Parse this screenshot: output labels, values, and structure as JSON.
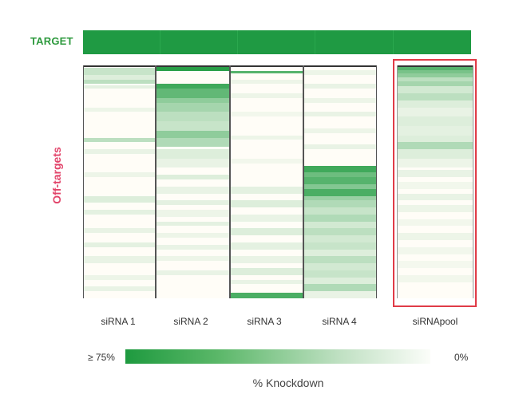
{
  "target_label": "TARGET",
  "offtargets_label": "Off-targets",
  "columns": [
    {
      "label": "siRNA 1",
      "bands": [
        [
          0.0,
          0.005,
          0.9
        ],
        [
          0.01,
          0.04,
          0.25
        ],
        [
          0.04,
          0.06,
          0.15
        ],
        [
          0.06,
          0.08,
          0.3
        ],
        [
          0.085,
          0.1,
          0.12
        ],
        [
          0.18,
          0.2,
          0.08
        ],
        [
          0.31,
          0.33,
          0.3
        ],
        [
          0.36,
          0.38,
          0.1
        ],
        [
          0.46,
          0.48,
          0.08
        ],
        [
          0.56,
          0.59,
          0.15
        ],
        [
          0.62,
          0.64,
          0.12
        ],
        [
          0.7,
          0.72,
          0.1
        ],
        [
          0.76,
          0.78,
          0.12
        ],
        [
          0.82,
          0.85,
          0.1
        ],
        [
          0.9,
          0.92,
          0.08
        ],
        [
          0.95,
          0.97,
          0.1
        ]
      ]
    },
    {
      "label": "siRNA 2",
      "bands": [
        [
          0.0,
          0.025,
          0.95
        ],
        [
          0.08,
          0.1,
          0.85
        ],
        [
          0.1,
          0.14,
          0.7
        ],
        [
          0.14,
          0.16,
          0.5
        ],
        [
          0.16,
          0.2,
          0.4
        ],
        [
          0.2,
          0.24,
          0.3
        ],
        [
          0.24,
          0.28,
          0.25
        ],
        [
          0.28,
          0.31,
          0.5
        ],
        [
          0.31,
          0.35,
          0.35
        ],
        [
          0.36,
          0.4,
          0.15
        ],
        [
          0.4,
          0.44,
          0.1
        ],
        [
          0.47,
          0.49,
          0.15
        ],
        [
          0.52,
          0.55,
          0.1
        ],
        [
          0.58,
          0.6,
          0.12
        ],
        [
          0.62,
          0.65,
          0.08
        ],
        [
          0.67,
          0.69,
          0.12
        ],
        [
          0.72,
          0.74,
          0.08
        ],
        [
          0.77,
          0.79,
          0.1
        ],
        [
          0.82,
          0.84,
          0.08
        ],
        [
          0.88,
          0.9,
          0.1
        ]
      ]
    },
    {
      "label": "siRNA 3",
      "bands": [
        [
          0.0,
          0.005,
          0.8
        ],
        [
          0.025,
          0.035,
          0.75
        ],
        [
          0.06,
          0.08,
          0.08
        ],
        [
          0.12,
          0.14,
          0.08
        ],
        [
          0.2,
          0.22,
          0.06
        ],
        [
          0.3,
          0.32,
          0.08
        ],
        [
          0.4,
          0.42,
          0.06
        ],
        [
          0.52,
          0.55,
          0.12
        ],
        [
          0.58,
          0.61,
          0.15
        ],
        [
          0.64,
          0.67,
          0.1
        ],
        [
          0.7,
          0.73,
          0.15
        ],
        [
          0.76,
          0.79,
          0.12
        ],
        [
          0.82,
          0.85,
          0.1
        ],
        [
          0.87,
          0.9,
          0.15
        ],
        [
          0.92,
          0.94,
          0.1
        ],
        [
          0.975,
          1.0,
          0.8
        ]
      ]
    },
    {
      "label": "siRNA 4",
      "bands": [
        [
          0.0,
          0.005,
          0.8
        ],
        [
          0.02,
          0.04,
          0.08
        ],
        [
          0.08,
          0.1,
          0.1
        ],
        [
          0.14,
          0.16,
          0.08
        ],
        [
          0.2,
          0.22,
          0.1
        ],
        [
          0.27,
          0.29,
          0.08
        ],
        [
          0.34,
          0.36,
          0.1
        ],
        [
          0.43,
          0.46,
          0.85
        ],
        [
          0.46,
          0.48,
          0.65
        ],
        [
          0.48,
          0.51,
          0.75
        ],
        [
          0.51,
          0.53,
          0.55
        ],
        [
          0.53,
          0.56,
          0.8
        ],
        [
          0.56,
          0.58,
          0.45
        ],
        [
          0.58,
          0.61,
          0.35
        ],
        [
          0.61,
          0.64,
          0.25
        ],
        [
          0.64,
          0.67,
          0.35
        ],
        [
          0.67,
          0.7,
          0.2
        ],
        [
          0.7,
          0.73,
          0.3
        ],
        [
          0.73,
          0.76,
          0.2
        ],
        [
          0.76,
          0.79,
          0.25
        ],
        [
          0.79,
          0.82,
          0.15
        ],
        [
          0.82,
          0.85,
          0.3
        ],
        [
          0.85,
          0.88,
          0.2
        ],
        [
          0.88,
          0.91,
          0.25
        ],
        [
          0.91,
          0.94,
          0.15
        ],
        [
          0.94,
          0.97,
          0.35
        ],
        [
          0.97,
          1.0,
          0.1
        ]
      ]
    },
    {
      "label": "siRNApool",
      "bands": [
        [
          0.0,
          0.005,
          0.7
        ],
        [
          0.005,
          0.02,
          0.75
        ],
        [
          0.02,
          0.035,
          0.6
        ],
        [
          0.035,
          0.05,
          0.5
        ],
        [
          0.05,
          0.07,
          0.3
        ],
        [
          0.07,
          0.09,
          0.4
        ],
        [
          0.09,
          0.12,
          0.2
        ],
        [
          0.12,
          0.15,
          0.3
        ],
        [
          0.15,
          0.18,
          0.15
        ],
        [
          0.18,
          0.22,
          0.1
        ],
        [
          0.22,
          0.26,
          0.15
        ],
        [
          0.26,
          0.3,
          0.12
        ],
        [
          0.3,
          0.33,
          0.15
        ],
        [
          0.33,
          0.36,
          0.35
        ],
        [
          0.36,
          0.4,
          0.15
        ],
        [
          0.4,
          0.44,
          0.08
        ],
        [
          0.45,
          0.48,
          0.1
        ],
        [
          0.5,
          0.53,
          0.06
        ],
        [
          0.55,
          0.58,
          0.1
        ],
        [
          0.6,
          0.63,
          0.08
        ],
        [
          0.66,
          0.69,
          0.06
        ],
        [
          0.72,
          0.75,
          0.08
        ],
        [
          0.78,
          0.81,
          0.06
        ],
        [
          0.84,
          0.87,
          0.05
        ],
        [
          0.9,
          0.93,
          0.06
        ]
      ]
    }
  ],
  "legend": {
    "min_label": "≥ 75%",
    "max_label": "0%",
    "title": "% Knockdown"
  },
  "colors": {
    "target": "#1f9a43",
    "offtargets_label": "#e2446a",
    "highlight_box": "#e03b47",
    "heat_high": "#1e9a3f",
    "heat_low": "#fffdf7"
  }
}
